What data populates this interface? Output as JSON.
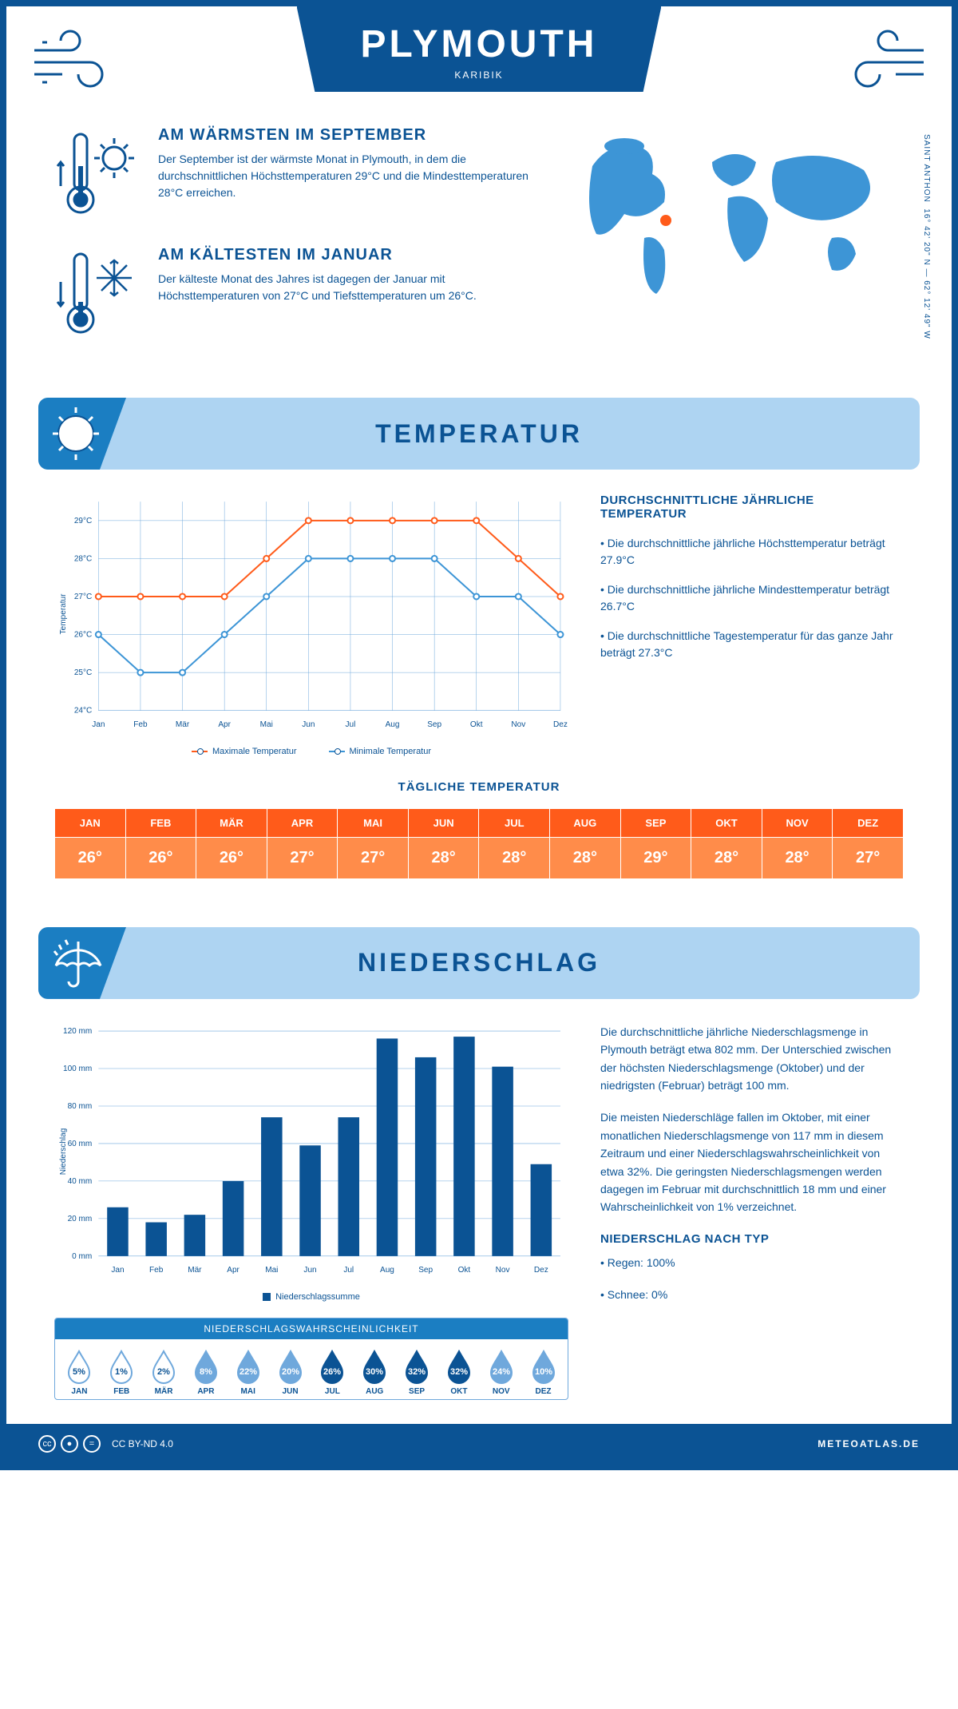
{
  "header": {
    "title": "PLYMOUTH",
    "subtitle": "KARIBIK"
  },
  "coords": "16° 42' 20\" N — 62° 12' 49\" W",
  "coords_label": "SAINT ANTHON",
  "warmest": {
    "title": "AM WÄRMSTEN IM SEPTEMBER",
    "body": "Der September ist der wärmste Monat in Plymouth, in dem die durchschnittlichen Höchsttemperaturen 29°C und die Mindesttemperaturen 28°C erreichen."
  },
  "coldest": {
    "title": "AM KÄLTESTEN IM JANUAR",
    "body": "Der kälteste Monat des Jahres ist dagegen der Januar mit Höchsttemperaturen von 27°C und Tiefsttemperaturen um 26°C."
  },
  "section_temp": "TEMPERATUR",
  "section_precip": "NIEDERSCHLAG",
  "months": [
    "Jan",
    "Feb",
    "Mär",
    "Apr",
    "Mai",
    "Jun",
    "Jul",
    "Aug",
    "Sep",
    "Okt",
    "Nov",
    "Dez"
  ],
  "months_upper": [
    "JAN",
    "FEB",
    "MÄR",
    "APR",
    "MAI",
    "JUN",
    "JUL",
    "AUG",
    "SEP",
    "OKT",
    "NOV",
    "DEZ"
  ],
  "temp_chart": {
    "type": "line",
    "ylabel": "Temperatur",
    "ylim": [
      24,
      29.5
    ],
    "yticks": [
      24,
      25,
      26,
      27,
      28,
      29
    ],
    "ytick_labels": [
      "24°C",
      "25°C",
      "26°C",
      "27°C",
      "28°C",
      "29°C"
    ],
    "series": [
      {
        "name": "Maximale Temperatur",
        "color": "#ff5b1a",
        "values": [
          27,
          27,
          27,
          27,
          28,
          29,
          29,
          29,
          29,
          29,
          28,
          27
        ]
      },
      {
        "name": "Minimale Temperatur",
        "color": "#3d95d6",
        "values": [
          26,
          25,
          25,
          26,
          27,
          28,
          28,
          28,
          28,
          27,
          27,
          26
        ]
      }
    ],
    "grid_color": "#6fa8dc",
    "background": "#ffffff",
    "marker": "circle",
    "line_width": 2
  },
  "temp_desc": {
    "title": "DURCHSCHNITTLICHE JÄHRLICHE TEMPERATUR",
    "bullets": [
      "• Die durchschnittliche jährliche Höchsttemperatur beträgt 27.9°C",
      "• Die durchschnittliche jährliche Mindesttemperatur beträgt 26.7°C",
      "• Die durchschnittliche Tagestemperatur für das ganze Jahr beträgt 27.3°C"
    ]
  },
  "daily_temp": {
    "title": "TÄGLICHE TEMPERATUR",
    "values": [
      "26°",
      "26°",
      "26°",
      "27°",
      "27°",
      "28°",
      "28°",
      "28°",
      "29°",
      "28°",
      "28°",
      "27°"
    ],
    "header_bg": "#ff5b1a",
    "cell_bg": "#ff8c4a"
  },
  "precip_chart": {
    "type": "bar",
    "ylabel": "Niederschlag",
    "ylim": [
      0,
      120
    ],
    "yticks": [
      0,
      20,
      40,
      60,
      80,
      100,
      120
    ],
    "ytick_labels": [
      "0 mm",
      "20 mm",
      "40 mm",
      "60 mm",
      "80 mm",
      "100 mm",
      "120 mm"
    ],
    "values": [
      26,
      18,
      22,
      40,
      74,
      59,
      74,
      116,
      106,
      117,
      101,
      49
    ],
    "bar_color": "#0b5394",
    "grid_color": "#6fa8dc",
    "legend": "Niederschlagssumme"
  },
  "precip_text": {
    "p1": "Die durchschnittliche jährliche Niederschlagsmenge in Plymouth beträgt etwa 802 mm. Der Unterschied zwischen der höchsten Niederschlagsmenge (Oktober) und der niedrigsten (Februar) beträgt 100 mm.",
    "p2": "Die meisten Niederschläge fallen im Oktober, mit einer monatlichen Niederschlagsmenge von 117 mm in diesem Zeitraum und einer Niederschlagswahrscheinlichkeit von etwa 32%. Die geringsten Niederschlagsmengen werden dagegen im Februar mit durchschnittlich 18 mm und einer Wahrscheinlichkeit von 1% verzeichnet.",
    "type_title": "NIEDERSCHLAG NACH TYP",
    "type_rain": "• Regen: 100%",
    "type_snow": "• Schnee: 0%"
  },
  "prob": {
    "title": "NIEDERSCHLAGSWAHRSCHEINLICHKEIT",
    "values": [
      5,
      1,
      2,
      8,
      22,
      20,
      26,
      30,
      32,
      32,
      24,
      10
    ],
    "colors": {
      "low": {
        "fill": "#ffffff",
        "stroke": "#6fa8dc",
        "text": "#0b5394"
      },
      "mid": {
        "fill": "#6fa8dc",
        "stroke": "#6fa8dc",
        "text": "#ffffff"
      },
      "high": {
        "fill": "#0b5394",
        "stroke": "#0b5394",
        "text": "#ffffff"
      }
    }
  },
  "footer": {
    "license": "CC BY-ND 4.0",
    "brand": "METEOATLAS.DE"
  },
  "colors": {
    "primary": "#0b5394",
    "accent": "#1b7ec2",
    "light": "#aed4f2",
    "orange": "#ff5b1a",
    "orange_light": "#ff8c4a"
  }
}
